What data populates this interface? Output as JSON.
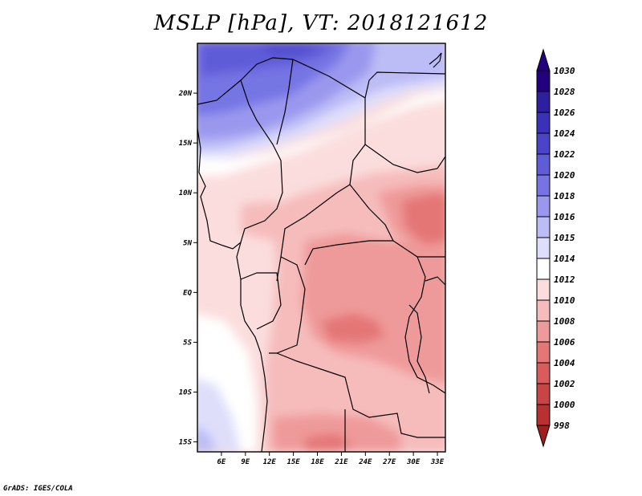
{
  "title": "MSLP [hPa], VT: 2018121612",
  "credit": "GrADS: IGES/COLA",
  "map": {
    "lat_labels": [
      "20N",
      "15N",
      "10N",
      "5N",
      "EQ",
      "5S",
      "10S",
      "15S"
    ],
    "lon_labels": [
      "6E",
      "9E",
      "12E",
      "15E",
      "18E",
      "21E",
      "24E",
      "27E",
      "30E",
      "33E"
    ],
    "lat_range": [
      -16,
      25
    ],
    "lon_range": [
      3,
      34
    ]
  },
  "colorbar": {
    "levels": [
      "1030",
      "1028",
      "1026",
      "1024",
      "1022",
      "1020",
      "1018",
      "1016",
      "1015",
      "1014",
      "1012",
      "1010",
      "1008",
      "1006",
      "1004",
      "1002",
      "1000",
      "998"
    ],
    "colors": [
      "#23007e",
      "#2e1ea0",
      "#3b30b8",
      "#4a45c8",
      "#5f5cd8",
      "#7674e4",
      "#9a98ee",
      "#bcbcf6",
      "#dedefb",
      "#ffffff",
      "#fbdddd",
      "#f6bcbc",
      "#ef9a9a",
      "#e47676",
      "#d85c5c",
      "#c84545",
      "#b83030",
      "#a01e1e"
    ]
  },
  "colors": {
    "background": "#ffffff",
    "coast": "#000000"
  }
}
